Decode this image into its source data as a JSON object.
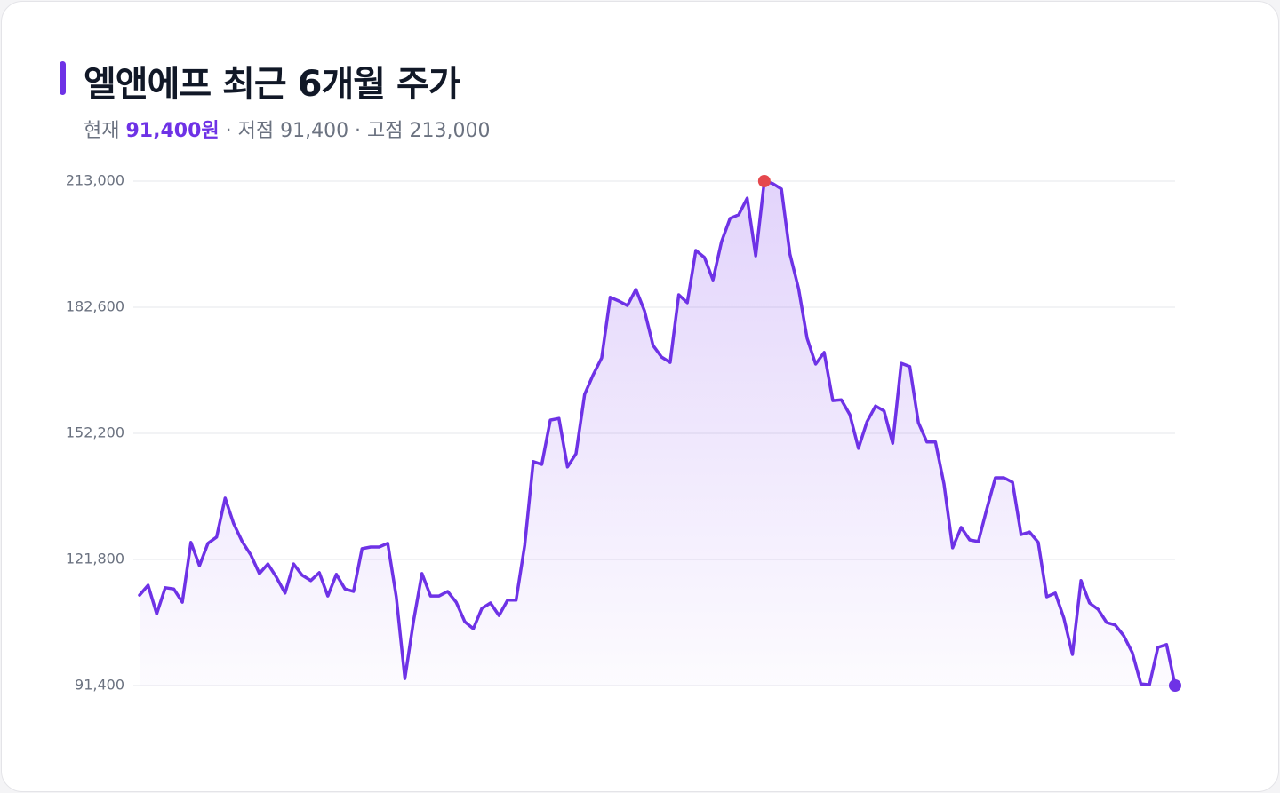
{
  "chart_data": {
    "type": "line",
    "title": "엘앤에프 최근 6개월 주가",
    "subtitle_prefix": "현재",
    "subtitle_current": "91,400원",
    "subtitle_rest": "· 저점 91,400 · 고점 213,000",
    "color": "#6e32e6",
    "high_color": "#e5484d",
    "grid": true,
    "ylim": [
      91400,
      213000
    ],
    "yticks": [
      {
        "value": 91400,
        "label": "91,400"
      },
      {
        "value": 121800,
        "label": "121,800"
      },
      {
        "value": 152200,
        "label": "152,200"
      },
      {
        "value": 182600,
        "label": "182,600"
      },
      {
        "value": 213000,
        "label": "213,000"
      }
    ],
    "values": [
      113200,
      115600,
      108700,
      115000,
      114700,
      111500,
      125900,
      120300,
      125700,
      127200,
      136600,
      130400,
      126100,
      122900,
      118400,
      120700,
      117500,
      113700,
      120700,
      118000,
      116700,
      118600,
      113000,
      118200,
      114700,
      114100,
      124400,
      124800,
      124800,
      125700,
      112800,
      93100,
      106800,
      118400,
      113000,
      113000,
      114100,
      111500,
      106800,
      105100,
      110000,
      111300,
      108300,
      112000,
      112000,
      125200,
      145400,
      144700,
      155400,
      155800,
      144100,
      147300,
      161600,
      166300,
      170400,
      185000,
      184100,
      183000,
      186900,
      181700,
      173400,
      170600,
      169300,
      185600,
      183700,
      196300,
      194600,
      189200,
      198400,
      204000,
      204900,
      208900,
      195000,
      213000,
      212400,
      211100,
      195400,
      187100,
      175100,
      168900,
      171700,
      160100,
      160300,
      156700,
      148600,
      155000,
      158800,
      157600,
      149800,
      169100,
      168300,
      154800,
      150100,
      150100,
      140000,
      124600,
      129500,
      126500,
      126100,
      134000,
      141500,
      141500,
      140400,
      127800,
      128400,
      125900,
      112800,
      113700,
      107700,
      98900,
      116700,
      111300,
      109800,
      106600,
      106000,
      103400,
      99300,
      91800,
      91600,
      100600,
      101300,
      91400
    ]
  }
}
